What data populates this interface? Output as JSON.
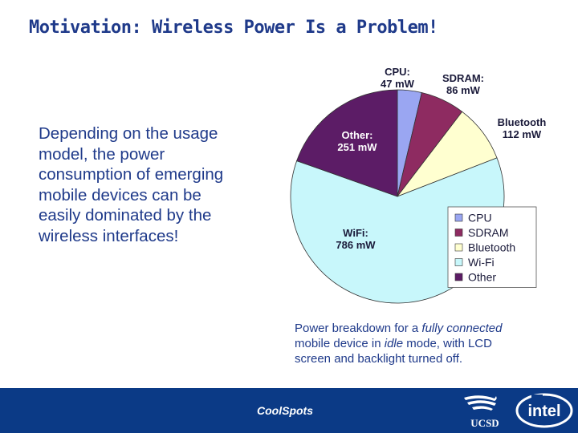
{
  "slide": {
    "title": "Motivation: Wireless Power Is a Problem!",
    "body_lines": [
      "Depending on the usage",
      "model, the power",
      "consumption of emerging",
      "mobile devices can be",
      "easily dominated by the",
      "wireless interfaces!"
    ],
    "caption": {
      "line1_pre": "Power breakdown for a ",
      "line1_em": "fully connected",
      "line2_pre": "mobile device in ",
      "line2_em": "idle",
      "line2_post": " mode, with LCD",
      "line3": "screen and backlight turned off."
    },
    "footer": {
      "label": "CoolSpots",
      "logo_ucsd": "UCSD",
      "logo_intel": "intel"
    }
  },
  "chart_data": {
    "type": "pie",
    "slices": [
      {
        "name": "CPU",
        "label_lines": [
          "CPU:",
          "47 mW"
        ],
        "value": 47,
        "unit": "mW",
        "color": "#9aa6f2"
      },
      {
        "name": "SDRAM",
        "label_lines": [
          "SDRAM:",
          "86 mW"
        ],
        "value": 86,
        "unit": "mW",
        "color": "#8e2b61"
      },
      {
        "name": "Bluetooth",
        "label_lines": [
          "Bluetooth",
          "112 mW"
        ],
        "value": 112,
        "unit": "mW",
        "color": "#ffffd0"
      },
      {
        "name": "Wi-Fi",
        "label_lines": [
          "WiFi:",
          "786 mW"
        ],
        "value": 786,
        "unit": "mW",
        "color": "#c8f7fb"
      },
      {
        "name": "Other",
        "label_lines": [
          "Other:",
          "251 mW"
        ],
        "value": 251,
        "unit": "mW",
        "color": "#5c1c66"
      }
    ],
    "legend": [
      "CPU",
      "SDRAM",
      "Bluetooth",
      "Wi-Fi",
      "Other"
    ],
    "legend_position": "bottom-right",
    "start_angle_deg": 0,
    "direction": "clockwise"
  }
}
